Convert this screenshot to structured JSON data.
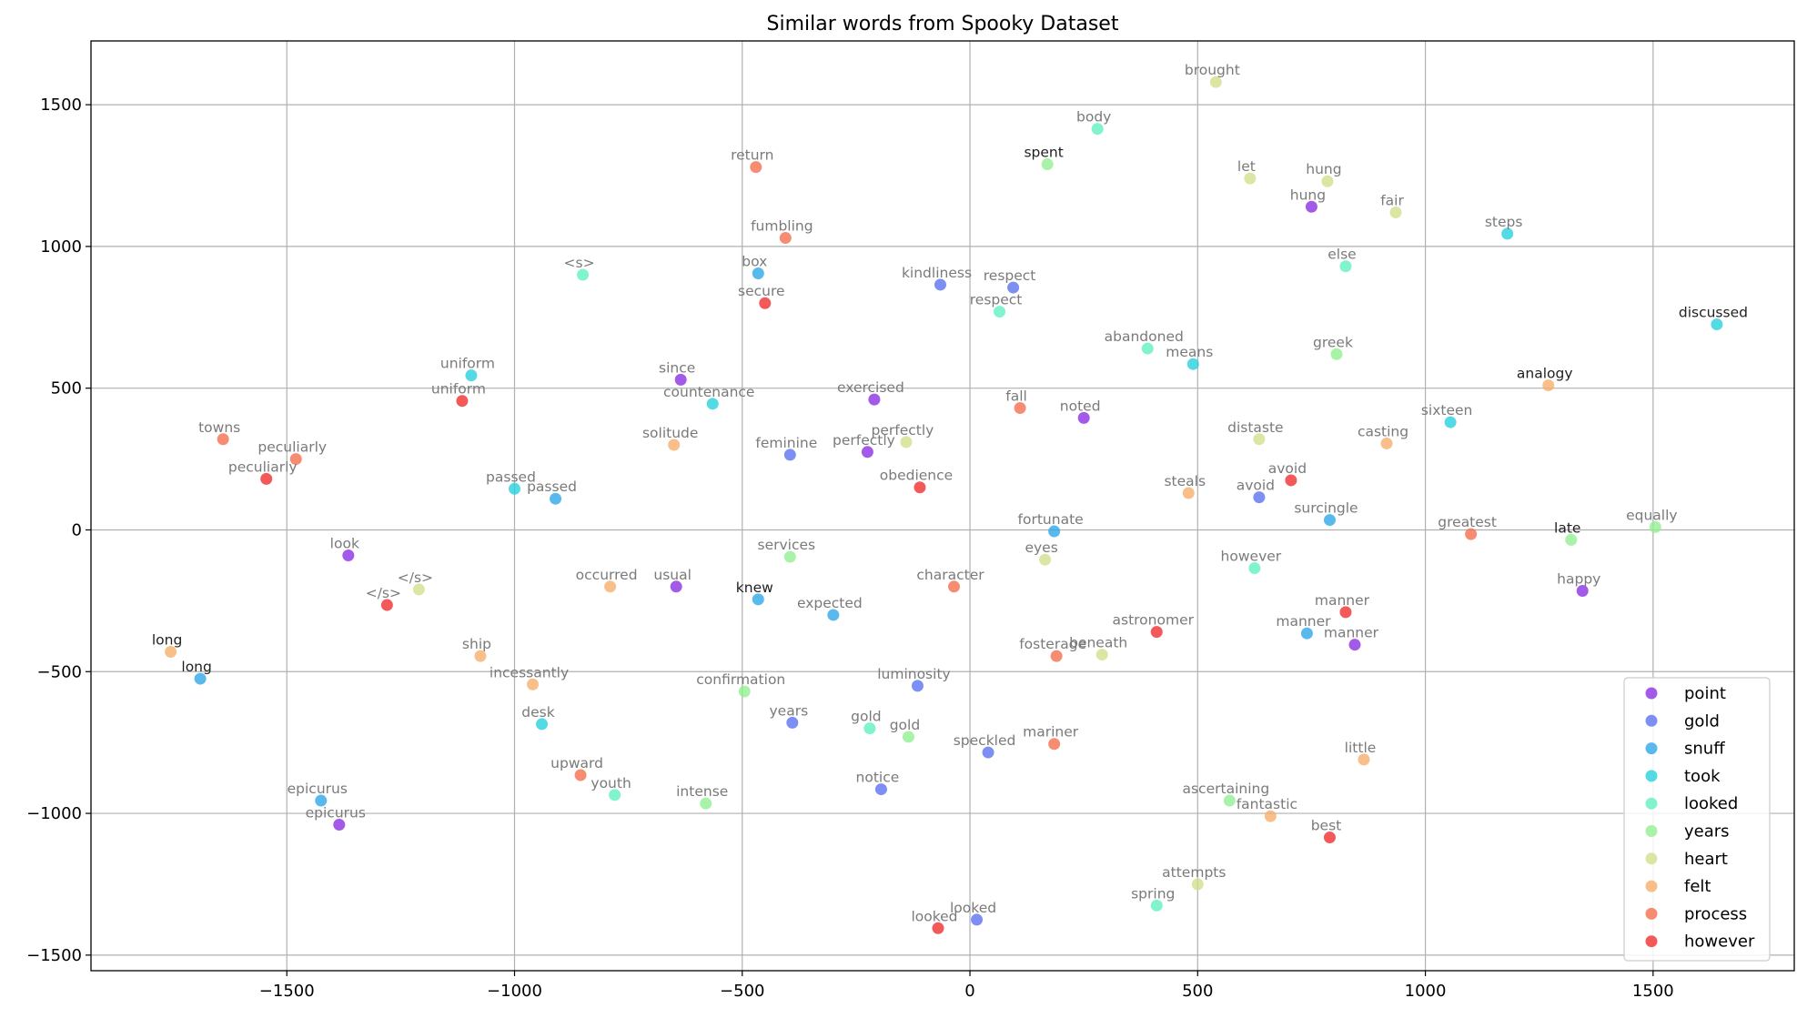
{
  "chart_data": {
    "type": "scatter",
    "title": "Similar words from Spooky Dataset",
    "xlabel": "",
    "ylabel": "",
    "xlim": [
      -1930,
      1810
    ],
    "ylim": [
      -1555,
      1725
    ],
    "xticks": [
      -1500,
      -1000,
      -500,
      0,
      500,
      1000,
      1500
    ],
    "yticks": [
      -1500,
      -1000,
      -500,
      0,
      500,
      1000,
      1500
    ],
    "grid": true,
    "legend_position": "lower right",
    "series": [
      {
        "name": "point",
        "color": "#8a2be2",
        "points": [
          {
            "label": "since",
            "x": -635,
            "y": 530
          },
          {
            "label": "exercised",
            "x": -210,
            "y": 460
          },
          {
            "label": "perfectly",
            "x": -225,
            "y": 275
          },
          {
            "label": "look",
            "x": -1365,
            "y": -90
          },
          {
            "label": "usual",
            "x": -645,
            "y": -200
          },
          {
            "label": "noted",
            "x": 250,
            "y": 395
          },
          {
            "label": "hung",
            "x": 750,
            "y": 1140
          },
          {
            "label": "happy",
            "x": 1345,
            "y": -215
          },
          {
            "label": "manner",
            "x": 845,
            "y": -405
          },
          {
            "label": "epicurus",
            "x": -1385,
            "y": -1040
          }
        ]
      },
      {
        "name": "gold",
        "color": "#5a6ff0",
        "points": [
          {
            "label": "kindliness",
            "x": -65,
            "y": 865
          },
          {
            "label": "respect",
            "x": 95,
            "y": 855
          },
          {
            "label": "feminine",
            "x": -395,
            "y": 265
          },
          {
            "label": "avoid",
            "x": 635,
            "y": 115
          },
          {
            "label": "luminosity",
            "x": -115,
            "y": -550
          },
          {
            "label": "years",
            "x": -390,
            "y": -680
          },
          {
            "label": "speckled",
            "x": 40,
            "y": -785
          },
          {
            "label": "notice",
            "x": -195,
            "y": -915
          },
          {
            "label": "looked",
            "x": 15,
            "y": -1375
          }
        ]
      },
      {
        "name": "snuff",
        "color": "#2aa5e8",
        "points": [
          {
            "label": "box",
            "x": -465,
            "y": 905
          },
          {
            "label": "passed",
            "x": -910,
            "y": 110
          },
          {
            "label": "knew",
            "x": -465,
            "y": -245
          },
          {
            "label": "expected",
            "x": -300,
            "y": -300
          },
          {
            "label": "fortunate",
            "x": 185,
            "y": -5
          },
          {
            "label": "surcingle",
            "x": 790,
            "y": 35
          },
          {
            "label": "manner",
            "x": 740,
            "y": -365
          },
          {
            "label": "long",
            "x": -1690,
            "y": -525
          },
          {
            "label": "epicurus",
            "x": -1425,
            "y": -955
          }
        ]
      },
      {
        "name": "took",
        "color": "#22d0dc",
        "points": [
          {
            "label": "uniform",
            "x": -1095,
            "y": 545
          },
          {
            "label": "countenance",
            "x": -565,
            "y": 445
          },
          {
            "label": "passed",
            "x": -1000,
            "y": 145
          },
          {
            "label": "means",
            "x": 490,
            "y": 585
          },
          {
            "label": "sixteen",
            "x": 1055,
            "y": 380
          },
          {
            "label": "steps",
            "x": 1180,
            "y": 1045
          },
          {
            "label": "discussed",
            "x": 1640,
            "y": 725
          },
          {
            "label": "desk",
            "x": -940,
            "y": -685
          }
        ]
      },
      {
        "name": "looked",
        "color": "#5ef0c0",
        "points": [
          {
            "label": "body",
            "x": 280,
            "y": 1415
          },
          {
            "label": "<s>",
            "x": -850,
            "y": 900
          },
          {
            "label": "respect",
            "x": 65,
            "y": 770
          },
          {
            "label": "abandoned",
            "x": 390,
            "y": 640
          },
          {
            "label": "else",
            "x": 825,
            "y": 930
          },
          {
            "label": "however",
            "x": 625,
            "y": -135
          },
          {
            "label": "gold",
            "x": -220,
            "y": -700
          },
          {
            "label": "youth",
            "x": -780,
            "y": -935
          },
          {
            "label": "spring",
            "x": 410,
            "y": -1325
          }
        ]
      },
      {
        "name": "years",
        "color": "#90f090",
        "points": [
          {
            "label": "spent",
            "x": 170,
            "y": 1290
          },
          {
            "label": "greek",
            "x": 805,
            "y": 620
          },
          {
            "label": "late",
            "x": 1320,
            "y": -35
          },
          {
            "label": "equally",
            "x": 1505,
            "y": 10
          },
          {
            "label": "services",
            "x": -395,
            "y": -95
          },
          {
            "label": "confirmation",
            "x": -495,
            "y": -570
          },
          {
            "label": "gold",
            "x": -135,
            "y": -730
          },
          {
            "label": "intense",
            "x": -580,
            "y": -965
          },
          {
            "label": "ascertaining",
            "x": 570,
            "y": -955
          }
        ]
      },
      {
        "name": "heart",
        "color": "#d2de8a",
        "points": [
          {
            "label": "brought",
            "x": 540,
            "y": 1580
          },
          {
            "label": "let",
            "x": 615,
            "y": 1240
          },
          {
            "label": "hung",
            "x": 785,
            "y": 1230
          },
          {
            "label": "fair",
            "x": 935,
            "y": 1120
          },
          {
            "label": "perfectly",
            "x": -140,
            "y": 310
          },
          {
            "label": "distaste",
            "x": 635,
            "y": 320
          },
          {
            "label": "eyes",
            "x": 165,
            "y": -105
          },
          {
            "label": "</s>",
            "x": -1210,
            "y": -210
          },
          {
            "label": "beneath",
            "x": 290,
            "y": -440
          },
          {
            "label": "attempts",
            "x": 500,
            "y": -1250
          }
        ]
      },
      {
        "name": "felt",
        "color": "#f7ad6a",
        "points": [
          {
            "label": "solitude",
            "x": -650,
            "y": 300
          },
          {
            "label": "analogy",
            "x": 1270,
            "y": 510
          },
          {
            "label": "casting",
            "x": 915,
            "y": 305
          },
          {
            "label": "steals",
            "x": 480,
            "y": 130
          },
          {
            "label": "occurred",
            "x": -790,
            "y": -200
          },
          {
            "label": "ship",
            "x": -1075,
            "y": -445
          },
          {
            "label": "incessantly",
            "x": -960,
            "y": -545
          },
          {
            "label": "long",
            "x": -1755,
            "y": -430
          },
          {
            "label": "little",
            "x": 865,
            "y": -810
          },
          {
            "label": "fantastic",
            "x": 660,
            "y": -1010
          }
        ]
      },
      {
        "name": "process",
        "color": "#f46d4a",
        "points": [
          {
            "label": "return",
            "x": -470,
            "y": 1280
          },
          {
            "label": "fumbling",
            "x": -405,
            "y": 1030
          },
          {
            "label": "towns",
            "x": -1640,
            "y": 320
          },
          {
            "label": "peculiarly",
            "x": -1480,
            "y": 250
          },
          {
            "label": "fall",
            "x": 110,
            "y": 430
          },
          {
            "label": "greatest",
            "x": 1100,
            "y": -15
          },
          {
            "label": "character",
            "x": -35,
            "y": -200
          },
          {
            "label": "fosterage",
            "x": 190,
            "y": -445
          },
          {
            "label": "mariner",
            "x": 185,
            "y": -755
          },
          {
            "label": "upward",
            "x": -855,
            "y": -865
          }
        ]
      },
      {
        "name": "however",
        "color": "#f02a2a",
        "points": [
          {
            "label": "secure",
            "x": -450,
            "y": 800
          },
          {
            "label": "uniform",
            "x": -1115,
            "y": 455
          },
          {
            "label": "peculiarly",
            "x": -1545,
            "y": 180
          },
          {
            "label": "obedience",
            "x": -110,
            "y": 150
          },
          {
            "label": "avoid",
            "x": 705,
            "y": 175
          },
          {
            "label": "</s>",
            "x": -1280,
            "y": -265
          },
          {
            "label": "astronomer",
            "x": 410,
            "y": -360
          },
          {
            "label": "manner",
            "x": 825,
            "y": -290
          },
          {
            "label": "best",
            "x": 790,
            "y": -1085
          },
          {
            "label": "looked",
            "x": -70,
            "y": -1405
          }
        ]
      }
    ],
    "darker_labels": [
      "spent",
      "discussed",
      "analogy",
      "late",
      "knew",
      "long"
    ]
  }
}
